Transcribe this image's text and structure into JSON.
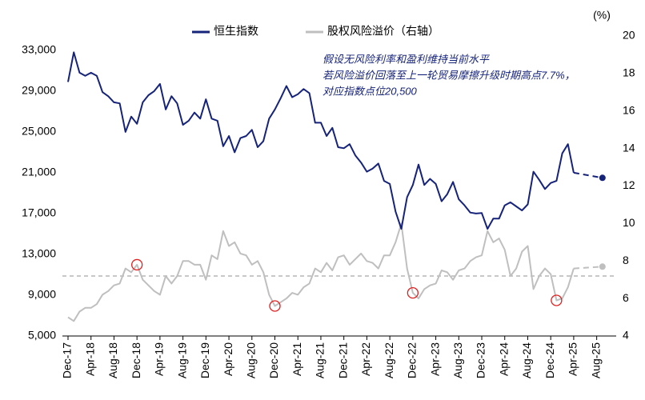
{
  "chart_data": {
    "type": "line",
    "y2_unit": "(%)",
    "annotation": [
      "假设无风险利率和盈利维持当前水平",
      "若风险溢价回落至上一轮贸易摩擦升级时期高点7.7%，",
      "对应指数点位20,500"
    ],
    "categories": [
      "Dec-17",
      null,
      null,
      null,
      "Apr-18",
      null,
      null,
      null,
      "Aug-18",
      null,
      null,
      null,
      "Dec-18",
      null,
      null,
      null,
      "Apr-19",
      null,
      null,
      null,
      "Aug-19",
      null,
      null,
      null,
      "Dec-19",
      null,
      null,
      null,
      "Apr-20",
      null,
      null,
      null,
      "Aug-20",
      null,
      null,
      null,
      "Dec-20",
      null,
      null,
      null,
      "Apr-21",
      null,
      null,
      null,
      "Aug-21",
      null,
      null,
      null,
      "Dec-21",
      null,
      null,
      null,
      "Apr-22",
      null,
      null,
      null,
      "Aug-22",
      null,
      null,
      null,
      "Dec-22",
      null,
      null,
      null,
      "Apr-23",
      null,
      null,
      null,
      "Aug-23",
      null,
      null,
      null,
      "Dec-23",
      null,
      null,
      null,
      "Apr-24",
      null,
      null,
      null,
      "Aug-24",
      null,
      null,
      null,
      "Dec-24",
      null,
      null,
      null,
      "Apr-25",
      null,
      null,
      null,
      "Aug-25",
      null,
      null
    ],
    "series": [
      {
        "name": "恒生指数",
        "color": "#16237a",
        "axis": "y",
        "values": [
          29900,
          32800,
          30800,
          30500,
          30800,
          30500,
          28900,
          28500,
          27900,
          27800,
          25000,
          26500,
          25800,
          27900,
          28600,
          29000,
          29700,
          27200,
          28500,
          27800,
          25700,
          26100,
          26900,
          26300,
          28200,
          26300,
          26100,
          23600,
          24600,
          23000,
          24400,
          24600,
          25200,
          23500,
          24100,
          26300,
          27200,
          28300,
          29500,
          28400,
          28700,
          29200,
          28800,
          25900,
          25900,
          24600,
          25400,
          23500,
          23400,
          23800,
          22700,
          22000,
          21100,
          21400,
          21900,
          20200,
          19900,
          17200,
          15500,
          18600,
          19800,
          21800,
          19800,
          20400,
          19900,
          18200,
          18900,
          20100,
          18400,
          17800,
          17100,
          17000,
          17050,
          15500,
          16500,
          16500,
          17800,
          18100,
          17700,
          17300,
          17900,
          21100,
          20300,
          19400,
          20000,
          20200,
          22900,
          23800,
          21000,
          null,
          null,
          null,
          null,
          null,
          null
        ],
        "projection": [
          null,
          null,
          null,
          null,
          null,
          null,
          null,
          null,
          null,
          null,
          null,
          null,
          null,
          null,
          null,
          null,
          null,
          null,
          null,
          null,
          null,
          null,
          null,
          null,
          null,
          null,
          null,
          null,
          null,
          null,
          null,
          null,
          null,
          null,
          null,
          null,
          null,
          null,
          null,
          null,
          null,
          null,
          null,
          null,
          null,
          null,
          null,
          null,
          null,
          null,
          null,
          null,
          null,
          null,
          null,
          null,
          null,
          null,
          null,
          null,
          null,
          null,
          null,
          null,
          null,
          null,
          null,
          null,
          null,
          null,
          null,
          null,
          null,
          null,
          null,
          null,
          null,
          null,
          null,
          null,
          null,
          null,
          null,
          null,
          null,
          null,
          null,
          null,
          21000,
          null,
          null,
          null,
          null,
          20500,
          null
        ]
      },
      {
        "name": "股权风险溢价（右轴）",
        "color": "#bfbfbf",
        "axis": "y2",
        "values": [
          5.0,
          4.8,
          5.3,
          5.5,
          5.5,
          5.7,
          6.2,
          6.4,
          6.7,
          6.8,
          7.6,
          7.4,
          7.8,
          7.0,
          6.7,
          6.4,
          6.2,
          7.2,
          6.8,
          7.2,
          8.0,
          8.0,
          7.8,
          7.8,
          7.0,
          8.3,
          8.1,
          9.6,
          8.8,
          9.0,
          8.4,
          8.3,
          7.8,
          8.0,
          7.4,
          6.2,
          5.6,
          5.8,
          6.0,
          6.3,
          6.2,
          6.6,
          6.8,
          7.6,
          7.4,
          7.9,
          7.5,
          8.2,
          8.3,
          7.8,
          8.1,
          8.4,
          8.0,
          7.9,
          7.6,
          8.3,
          8.3,
          9.0,
          10.0,
          7.6,
          6.3,
          6.0,
          6.5,
          6.7,
          6.8,
          7.5,
          7.4,
          7.0,
          7.5,
          7.6,
          8.0,
          8.2,
          8.3,
          9.6,
          9.0,
          9.2,
          8.6,
          7.2,
          7.6,
          8.5,
          8.8,
          6.5,
          7.2,
          7.6,
          7.3,
          5.9,
          6.0,
          6.6,
          7.6,
          null,
          null,
          null,
          null,
          null,
          null
        ],
        "projection": [
          null,
          null,
          null,
          null,
          null,
          null,
          null,
          null,
          null,
          null,
          null,
          null,
          null,
          null,
          null,
          null,
          null,
          null,
          null,
          null,
          null,
          null,
          null,
          null,
          null,
          null,
          null,
          null,
          null,
          null,
          null,
          null,
          null,
          null,
          null,
          null,
          null,
          null,
          null,
          null,
          null,
          null,
          null,
          null,
          null,
          null,
          null,
          null,
          null,
          null,
          null,
          null,
          null,
          null,
          null,
          null,
          null,
          null,
          null,
          null,
          null,
          null,
          null,
          null,
          null,
          null,
          null,
          null,
          null,
          null,
          null,
          null,
          null,
          null,
          null,
          null,
          null,
          null,
          null,
          null,
          null,
          null,
          null,
          null,
          null,
          null,
          null,
          null,
          7.6,
          null,
          null,
          null,
          null,
          7.7,
          null
        ],
        "highlight_points": [
          12,
          36,
          60,
          85
        ],
        "highlight_color": "#e02020"
      }
    ],
    "reference_line": {
      "value": 7.2,
      "axis": "y2",
      "color": "#a6a6a6"
    },
    "ylim": [
      5000,
      34400
    ],
    "yticks": [
      {
        "value": 5000,
        "label": "5,000"
      },
      {
        "value": 9000,
        "label": "9,000"
      },
      {
        "value": 13000,
        "label": "13,000"
      },
      {
        "value": 17000,
        "label": "17,000"
      },
      {
        "value": 21000,
        "label": "21,000"
      },
      {
        "value": 25000,
        "label": "25,000"
      },
      {
        "value": 29000,
        "label": "29,000"
      },
      {
        "value": 33000,
        "label": "33,000"
      }
    ],
    "y2lim": [
      4,
      20
    ],
    "y2ticks": [
      4,
      6,
      8,
      10,
      12,
      14,
      16,
      18,
      20
    ],
    "grid": false
  }
}
